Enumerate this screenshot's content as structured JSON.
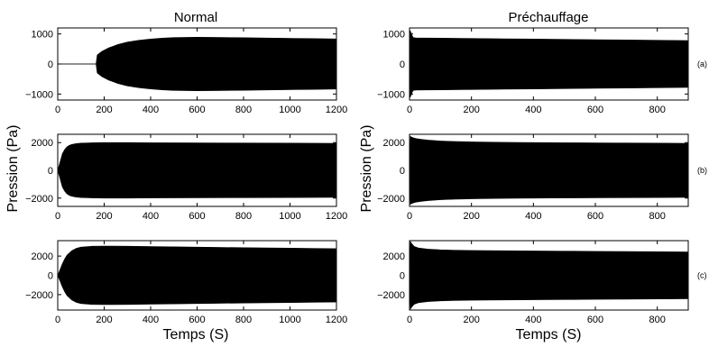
{
  "figure": {
    "column_titles": [
      "Normal",
      "Préchauffage"
    ],
    "ylabel": "Pression (Pa)",
    "xlabel": "Temps (S)"
  },
  "chart_data": [
    {
      "type": "area",
      "column": "Normal",
      "row": "(a)",
      "xlim": [
        0,
        1200
      ],
      "ylim": [
        -1200,
        1200
      ],
      "xticks": [
        0,
        200,
        400,
        600,
        800,
        1000,
        1200
      ],
      "yticks": [
        -1000,
        0,
        1000
      ],
      "envelope": {
        "x": [
          0,
          165,
          170,
          190,
          220,
          260,
          300,
          350,
          400,
          450,
          500,
          600,
          700,
          800,
          900,
          1000,
          1100,
          1200
        ],
        "max": [
          0,
          0,
          300,
          420,
          540,
          650,
          730,
          790,
          830,
          860,
          880,
          890,
          885,
          875,
          865,
          855,
          845,
          835
        ]
      }
    },
    {
      "type": "area",
      "column": "Préchauffage",
      "row": "(a)",
      "xlim": [
        0,
        900
      ],
      "ylim": [
        -1200,
        1200
      ],
      "xticks": [
        0,
        200,
        400,
        600,
        800
      ],
      "yticks": [
        -1000,
        0,
        1000
      ],
      "envelope": {
        "x": [
          0,
          2,
          5,
          8,
          12,
          20,
          50,
          100,
          200,
          300,
          400,
          500,
          600,
          700,
          800,
          900
        ],
        "max": [
          0,
          1100,
          1050,
          950,
          880,
          870,
          865,
          860,
          850,
          840,
          830,
          820,
          810,
          800,
          790,
          780
        ]
      }
    },
    {
      "type": "area",
      "column": "Normal",
      "row": "(b)",
      "xlim": [
        0,
        1200
      ],
      "ylim": [
        -2600,
        2600
      ],
      "xticks": [
        0,
        200,
        400,
        600,
        800,
        1000,
        1200
      ],
      "yticks": [
        -2000,
        0,
        2000
      ],
      "envelope": {
        "x": [
          0,
          10,
          20,
          30,
          40,
          50,
          60,
          80,
          100,
          150,
          200,
          300,
          400,
          600,
          800,
          1000,
          1200
        ],
        "max": [
          0,
          600,
          1200,
          1500,
          1700,
          1800,
          1870,
          1930,
          1960,
          1990,
          2000,
          2000,
          1990,
          1980,
          1970,
          1960,
          1950
        ]
      }
    },
    {
      "type": "area",
      "column": "Préchauffage",
      "row": "(b)",
      "xlim": [
        0,
        900
      ],
      "ylim": [
        -2600,
        2600
      ],
      "xticks": [
        0,
        200,
        400,
        600,
        800
      ],
      "yticks": [
        -2000,
        0,
        2000
      ],
      "envelope": {
        "x": [
          0,
          3,
          8,
          20,
          40,
          60,
          100,
          150,
          200,
          300,
          400,
          500,
          600,
          700,
          800,
          900
        ],
        "max": [
          0,
          2450,
          2380,
          2300,
          2230,
          2180,
          2120,
          2080,
          2050,
          2020,
          2000,
          1990,
          1980,
          1970,
          1960,
          1950
        ]
      }
    },
    {
      "type": "area",
      "column": "Normal",
      "row": "(c)",
      "xlim": [
        0,
        1200
      ],
      "ylim": [
        -3600,
        3600
      ],
      "xticks": [
        0,
        200,
        400,
        600,
        800,
        1000,
        1200
      ],
      "yticks": [
        -2000,
        0,
        2000
      ],
      "envelope": {
        "x": [
          0,
          10,
          20,
          30,
          40,
          60,
          80,
          100,
          150,
          200,
          300,
          400,
          600,
          800,
          1000,
          1200
        ],
        "max": [
          0,
          600,
          1200,
          1700,
          2100,
          2550,
          2800,
          2930,
          3020,
          3040,
          3020,
          2990,
          2930,
          2870,
          2820,
          2770
        ]
      }
    },
    {
      "type": "area",
      "column": "Préchauffage",
      "row": "(c)",
      "xlim": [
        0,
        900
      ],
      "ylim": [
        -3600,
        3600
      ],
      "xticks": [
        0,
        200,
        400,
        600,
        800
      ],
      "yticks": [
        -2000,
        0,
        2000
      ],
      "envelope": {
        "x": [
          0,
          3,
          8,
          15,
          30,
          60,
          100,
          150,
          200,
          300,
          400,
          500,
          600,
          700,
          800,
          900
        ],
        "max": [
          0,
          3500,
          3250,
          3000,
          2830,
          2720,
          2650,
          2600,
          2580,
          2550,
          2530,
          2510,
          2490,
          2470,
          2450,
          2430
        ]
      }
    }
  ]
}
